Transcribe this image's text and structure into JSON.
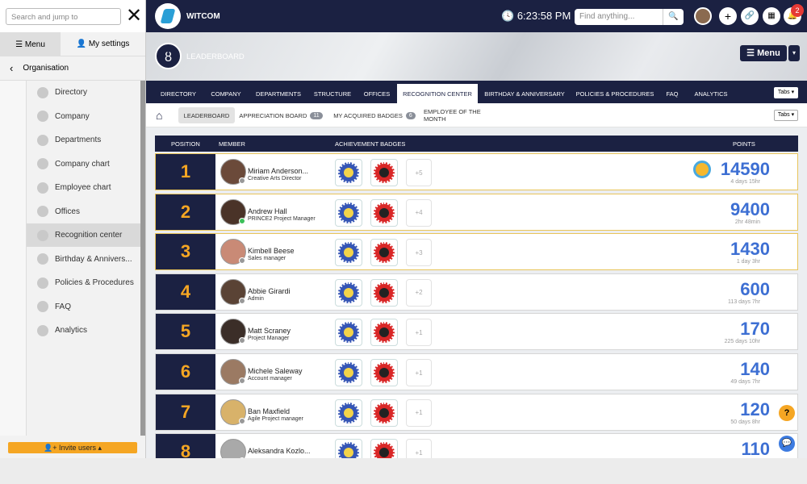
{
  "sidebar": {
    "search_placeholder": "Search and jump to",
    "tabs": [
      "Menu",
      "My settings"
    ],
    "section": "Organisation",
    "items": [
      "Directory",
      "Company",
      "Departments",
      "Company chart",
      "Employee chart",
      "Offices",
      "Recognition center",
      "Birthday & Annivers...",
      "Policies & Procedures",
      "FAQ",
      "Analytics"
    ],
    "invite": "Invite users"
  },
  "topbar": {
    "brand": "WITCOM",
    "time": "6:23:58 PM",
    "search_placeholder": "Find anything...",
    "notification_count": 2
  },
  "banner": {
    "title": "LEADERBOARD",
    "menu": "Menu"
  },
  "nav": {
    "tabs": [
      "DIRECTORY",
      "COMPANY",
      "DEPARTMENTS",
      "STRUCTURE",
      "OFFICES",
      "RECOGNITION CENTER",
      "BIRTHDAY & ANNIVERSARY",
      "POLICIES & PROCEDURES",
      "FAQ",
      "ANALYTICS"
    ],
    "tabs_button": "Tabs"
  },
  "subnav": {
    "tabs": [
      {
        "label": "LEADERBOARD"
      },
      {
        "label": "APPRECIATION BOARD",
        "count": 11
      },
      {
        "label": "MY ACQUIRED BADGES",
        "count": 6
      },
      {
        "label": "EMPLOYEE OF THE MONTH"
      }
    ],
    "tabs_button": "Tabs"
  },
  "table": {
    "headers": [
      "POSITION",
      "MEMBER",
      "ACHIEVEMENT BADGES",
      "POINTS"
    ],
    "rows": [
      {
        "position": 1,
        "name": "Miriam Anderson...",
        "role": "Creative Arts Director",
        "extra_badges": "+5",
        "points": 14590,
        "time": "4 days 15hr"
      },
      {
        "position": 2,
        "name": "Andrew Hall",
        "role": "PRINCE2 Project Manager",
        "extra_badges": "+4",
        "points": 9400,
        "time": "2hr 48min"
      },
      {
        "position": 3,
        "name": "Kimbell Beese",
        "role": "Sales manager",
        "extra_badges": "+3",
        "points": 1430,
        "time": "1 day 3hr"
      },
      {
        "position": 4,
        "name": "Abbie Girardi",
        "role": "Admin",
        "extra_badges": "+2",
        "points": 600,
        "time": "113 days 7hr"
      },
      {
        "position": 5,
        "name": "Matt Scraney",
        "role": "Project Manager",
        "extra_badges": "+1",
        "points": 170,
        "time": "225 days 10hr"
      },
      {
        "position": 6,
        "name": "Michele Saleway",
        "role": "Account manager",
        "extra_badges": "+1",
        "points": 140,
        "time": "49 days 7hr"
      },
      {
        "position": 7,
        "name": "Ban Maxfield",
        "role": "Agile Project manager",
        "extra_badges": "+1",
        "points": 120,
        "time": "50 days 8hr"
      },
      {
        "position": 8,
        "name": "Aleksandra Kozlo...",
        "extra_badges": "+1",
        "points": 110
      }
    ]
  }
}
